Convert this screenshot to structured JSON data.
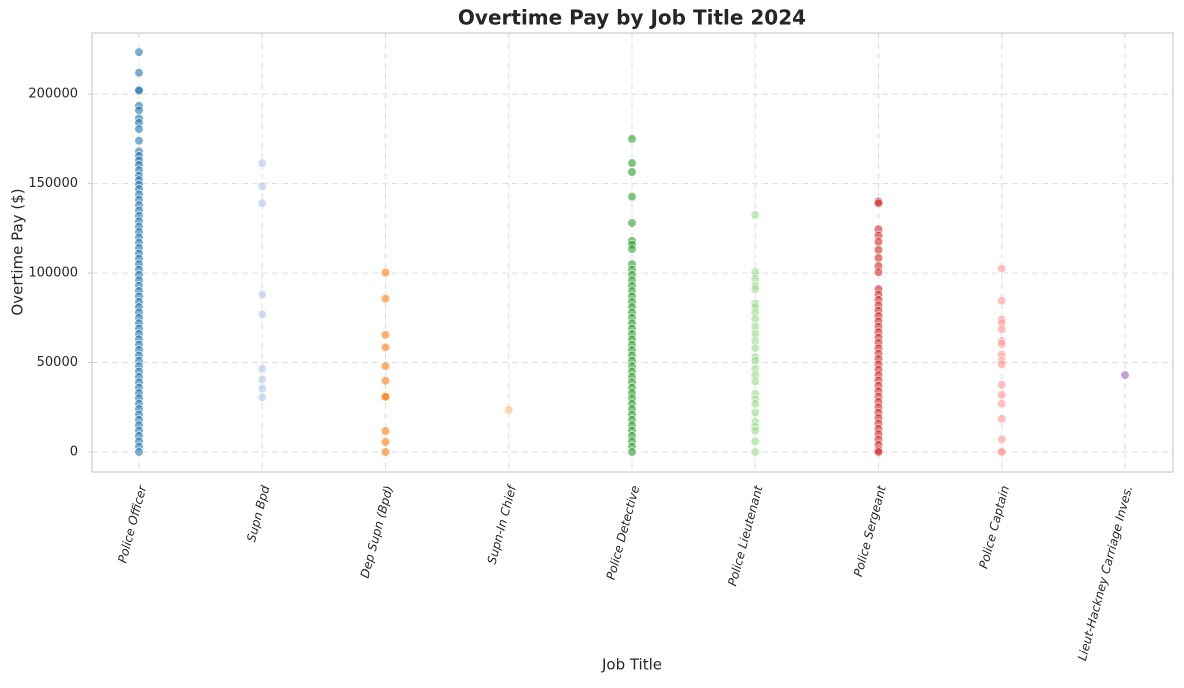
{
  "chart_data": {
    "type": "strip",
    "title": "Overtime Pay by Job Title 2024",
    "x_label": "Job Title",
    "y_label": "Overtime Pay ($)",
    "categories": [
      "Police Officer",
      "Supn Bpd",
      "Dep Supn (Bpd)",
      "Supn-In Chief",
      "Police Detective",
      "Police Lieutenant",
      "Police Sergeant",
      "Police Captain",
      "Lieut-Hackney Carriage Inves."
    ],
    "colors": [
      "#1f77b4",
      "#aec7e8",
      "#ff7f0e",
      "#ffbb78",
      "#2ca02c",
      "#98df8a",
      "#d62728",
      "#ff9896",
      "#9467bd"
    ],
    "values": [
      [
        223500,
        212000,
        202500,
        202000,
        193500,
        191000,
        186500,
        184000,
        180500,
        174000,
        168000,
        165500,
        163000,
        160500,
        157500,
        154500,
        152000,
        149500,
        147000,
        144000,
        141000,
        138000,
        135000,
        132000,
        129000,
        126000,
        123000,
        120000,
        117000,
        114000,
        111000,
        108000,
        105000,
        102000,
        99000,
        96000,
        93000,
        90000,
        87000,
        84000,
        81000,
        78000,
        75000,
        72000,
        69000,
        66000,
        63000,
        60000,
        57000,
        54000,
        51000,
        48000,
        45000,
        42000,
        39000,
        36000,
        33000,
        30000,
        27000,
        24000,
        21000,
        18000,
        15000,
        12000,
        9000,
        6000,
        3000,
        0
      ],
      [
        161500,
        148500,
        139000,
        88000,
        77000,
        46500,
        40500,
        35500,
        30500
      ],
      [
        100300,
        85700,
        65500,
        58500,
        48000,
        39800,
        31200,
        30800,
        11700,
        5600,
        0
      ],
      [
        23500
      ],
      [
        175000,
        161500,
        156500,
        142700,
        128000,
        118000,
        116000,
        113500,
        105000,
        102000,
        99000,
        96000,
        93000,
        90000,
        87000,
        84000,
        81000,
        78000,
        75000,
        72000,
        69000,
        66000,
        63000,
        60000,
        57000,
        54000,
        51000,
        48000,
        45000,
        42000,
        39000,
        36000,
        33000,
        30000,
        27000,
        24000,
        21000,
        18000,
        15000,
        12000,
        9000,
        6000,
        3000,
        0
      ],
      [
        132500,
        100500,
        97000,
        93000,
        91000,
        83000,
        81000,
        78000,
        74500,
        70000,
        66000,
        62000,
        58000,
        53000,
        51000,
        46500,
        43000,
        39500,
        32500,
        29500,
        27000,
        22000,
        17000,
        14000,
        12000,
        6000,
        0
      ],
      [
        140000,
        139000,
        124500,
        121000,
        117500,
        113000,
        108500,
        104000,
        100500,
        91000,
        88000,
        85000,
        82000,
        79000,
        76000,
        73000,
        70000,
        67000,
        64000,
        61000,
        58000,
        55000,
        52000,
        49000,
        46000,
        43000,
        40000,
        37000,
        34000,
        31000,
        28000,
        25000,
        22000,
        19000,
        16000,
        13000,
        10000,
        7000,
        4000,
        1000,
        0
      ],
      [
        102500,
        84500,
        74000,
        72000,
        68500,
        62000,
        60500,
        54500,
        51000,
        49000,
        37500,
        32000,
        27000,
        18500,
        7000,
        500,
        0
      ],
      [
        43000
      ]
    ],
    "ylim": [
      -11200,
      234200
    ],
    "yticks": [
      0,
      50000,
      100000,
      150000,
      200000
    ],
    "grid": true
  }
}
